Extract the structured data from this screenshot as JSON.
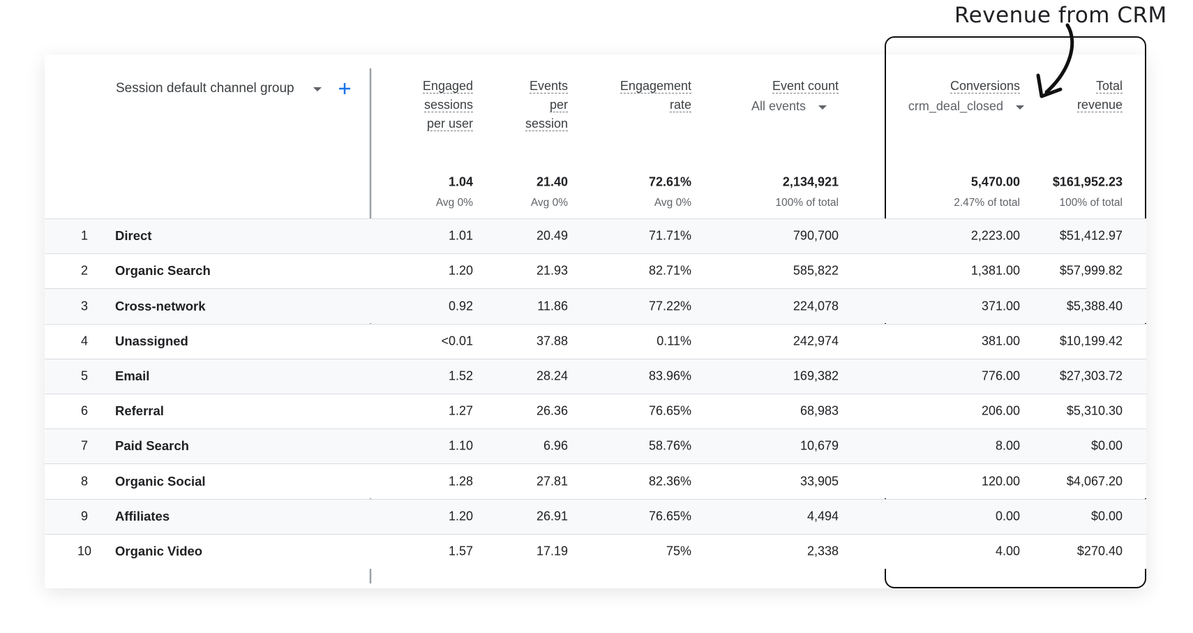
{
  "annotation": "Revenue from CRM",
  "dimension": "Session default channel group",
  "columns": [
    {
      "label": [
        "Engaged",
        "sessions",
        "per user"
      ]
    },
    {
      "label": [
        "Events",
        "per",
        "session"
      ]
    },
    {
      "label": [
        "Engagement",
        "rate"
      ]
    },
    {
      "label": [
        "Event count"
      ],
      "sub": "All events"
    },
    {
      "label": [
        "Conversions"
      ],
      "sub": "crm_deal_closed"
    },
    {
      "label": [
        "Total",
        "revenue"
      ]
    }
  ],
  "totals": [
    {
      "value": "1.04",
      "note": "Avg 0%"
    },
    {
      "value": "21.40",
      "note": "Avg 0%"
    },
    {
      "value": "72.61%",
      "note": "Avg 0%"
    },
    {
      "value": "2,134,921",
      "note": "100% of total"
    },
    {
      "value": "5,470.00",
      "note": "2.47% of total"
    },
    {
      "value": "$161,952.23",
      "note": "100% of total"
    }
  ],
  "rows": [
    {
      "rank": "1",
      "channel": "Direct",
      "values": [
        "1.01",
        "20.49",
        "71.71%",
        "790,700",
        "2,223.00",
        "$51,412.97"
      ]
    },
    {
      "rank": "2",
      "channel": "Organic Search",
      "values": [
        "1.20",
        "21.93",
        "82.71%",
        "585,822",
        "1,381.00",
        "$57,999.82"
      ]
    },
    {
      "rank": "3",
      "channel": "Cross-network",
      "values": [
        "0.92",
        "11.86",
        "77.22%",
        "224,078",
        "371.00",
        "$5,388.40"
      ]
    },
    {
      "rank": "4",
      "channel": "Unassigned",
      "values": [
        "<0.01",
        "37.88",
        "0.11%",
        "242,974",
        "381.00",
        "$10,199.42"
      ]
    },
    {
      "rank": "5",
      "channel": "Email",
      "values": [
        "1.52",
        "28.24",
        "83.96%",
        "169,382",
        "776.00",
        "$27,303.72"
      ]
    },
    {
      "rank": "6",
      "channel": "Referral",
      "values": [
        "1.27",
        "26.36",
        "76.65%",
        "68,983",
        "206.00",
        "$5,310.30"
      ]
    },
    {
      "rank": "7",
      "channel": "Paid Search",
      "values": [
        "1.10",
        "6.96",
        "58.76%",
        "10,679",
        "8.00",
        "$0.00"
      ]
    },
    {
      "rank": "8",
      "channel": "Organic Social",
      "values": [
        "1.28",
        "27.81",
        "82.36%",
        "33,905",
        "120.00",
        "$4,067.20"
      ]
    },
    {
      "rank": "9",
      "channel": "Affiliates",
      "values": [
        "1.20",
        "26.91",
        "76.65%",
        "4,494",
        "0.00",
        "$0.00"
      ]
    },
    {
      "rank": "10",
      "channel": "Organic Video",
      "values": [
        "1.57",
        "17.19",
        "75%",
        "2,338",
        "4.00",
        "$270.40"
      ]
    }
  ]
}
